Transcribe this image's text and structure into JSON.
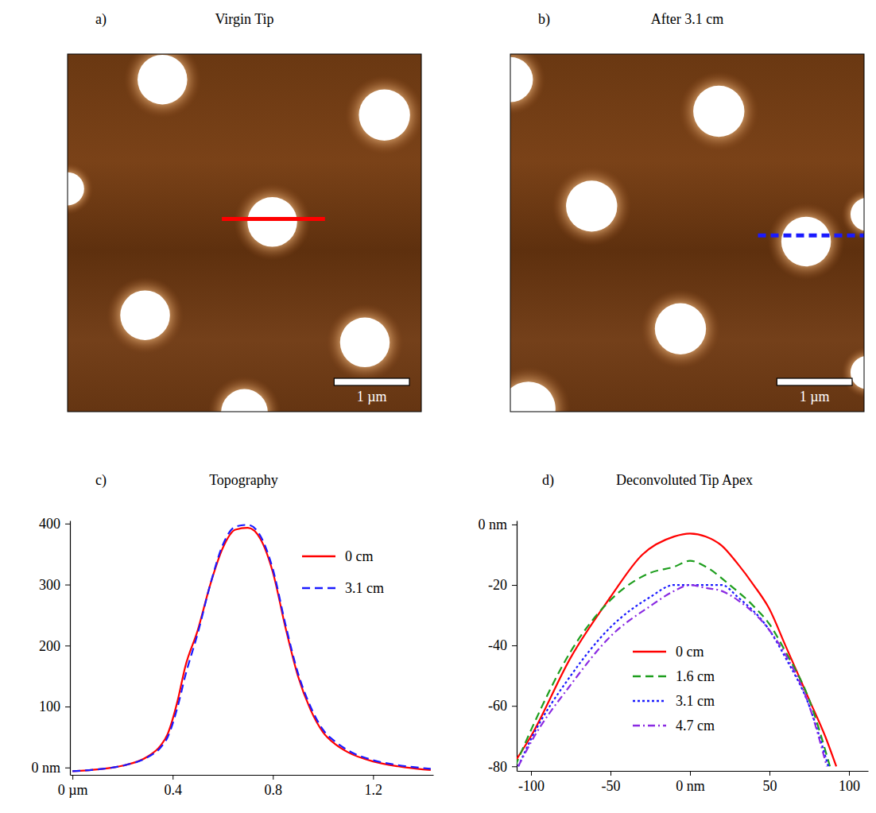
{
  "chart_data": [
    {
      "type": "image",
      "label": "a)",
      "title": "Virgin Tip",
      "xlim": [
        0,
        4.7
      ],
      "ylim": [
        0,
        4.75
      ],
      "tick_labels": false,
      "particles": [
        {
          "x": 1.26,
          "y": 0.34,
          "r": 0.33
        },
        {
          "x": 4.21,
          "y": 0.81,
          "r": 0.34
        },
        {
          "x": 0.0,
          "y": 1.79,
          "r": 0.22
        },
        {
          "x": 2.72,
          "y": 2.23,
          "r": 0.33
        },
        {
          "x": 1.03,
          "y": 3.47,
          "r": 0.33
        },
        {
          "x": 3.95,
          "y": 3.83,
          "r": 0.33
        },
        {
          "x": 2.35,
          "y": 4.76,
          "r": 0.31
        }
      ],
      "profile": {
        "x": [
          2.05,
          3.42
        ],
        "y": 2.19,
        "color": "#ff0000",
        "line_style": "solid"
      },
      "scale_bar": {
        "length": 1,
        "label": "1 µm"
      }
    },
    {
      "type": "image",
      "label": "b)",
      "title": "After 3.1 cm",
      "xlim": [
        0,
        4.7
      ],
      "ylim": [
        0,
        4.75
      ],
      "tick_labels": false,
      "particles": [
        {
          "x": 0.0,
          "y": 0.34,
          "r": 0.3
        },
        {
          "x": 2.77,
          "y": 0.76,
          "r": 0.34
        },
        {
          "x": 1.08,
          "y": 2.02,
          "r": 0.34
        },
        {
          "x": 3.93,
          "y": 2.49,
          "r": 0.33
        },
        {
          "x": 4.74,
          "y": 2.13,
          "r": 0.22
        },
        {
          "x": 2.26,
          "y": 3.65,
          "r": 0.34
        },
        {
          "x": 0.24,
          "y": 4.71,
          "r": 0.36
        },
        {
          "x": 4.74,
          "y": 4.23,
          "r": 0.22
        }
      ],
      "profile": {
        "x": [
          3.29,
          4.74
        ],
        "y": 2.41,
        "color": "#1a1aff",
        "line_style": "dashed"
      },
      "scale_bar": {
        "length": 1,
        "label": "1 µm"
      }
    },
    {
      "type": "line",
      "label": "c)",
      "title": "Topography",
      "x": [
        0,
        0.1,
        0.2,
        0.3,
        0.35,
        0.38,
        0.42,
        0.45,
        0.5,
        0.55,
        0.6,
        0.65,
        0.7,
        0.75,
        0.8,
        0.85,
        0.9,
        0.95,
        1.0,
        1.05,
        1.1,
        1.2,
        1.3,
        1.43
      ],
      "series": [
        {
          "name": "0 cm",
          "color": "#ff0000",
          "line_style": "solid",
          "values": [
            -6,
            -3,
            3,
            18,
            35,
            55,
            110,
            165,
            225,
            300,
            360,
            390,
            393,
            375,
            320,
            230,
            150,
            95,
            58,
            38,
            25,
            10,
            2,
            -4
          ]
        },
        {
          "name": "3.1 cm",
          "color": "#1a1aff",
          "line_style": "dashed",
          "values": [
            -6,
            -3,
            3,
            17,
            32,
            50,
            100,
            150,
            220,
            300,
            365,
            395,
            398,
            380,
            325,
            235,
            155,
            100,
            62,
            42,
            28,
            12,
            4,
            -2
          ]
        }
      ],
      "xlim": [
        -0.01,
        1.44
      ],
      "ylim": [
        -12,
        405
      ],
      "xticks": [
        {
          "value": 0,
          "label": "0 µm"
        },
        0.4,
        0.8,
        1.2
      ],
      "yticks": [
        {
          "value": 0,
          "label": "0 nm"
        },
        100,
        200,
        300,
        400
      ],
      "legend": "upper right"
    },
    {
      "type": "line",
      "label": "d)",
      "title": "Deconvoluted Tip Apex",
      "series": [
        {
          "name": "0 cm",
          "color": "#ff0000",
          "line_style": "solid",
          "x": [
            -112,
            -100,
            -75,
            -50,
            -30,
            -10,
            0,
            10,
            20,
            30,
            40,
            50,
            60,
            75,
            85,
            92
          ],
          "values": [
            -80,
            -70,
            -44,
            -24,
            -10,
            -4,
            -3,
            -4,
            -7,
            -13,
            -20,
            -28,
            -40,
            -58,
            -70,
            -80
          ]
        },
        {
          "name": "1.6 cm",
          "color": "#1e9e1e",
          "line_style": "dashed",
          "x": [
            -110,
            -100,
            -75,
            -50,
            -25,
            -10,
            0,
            10,
            25,
            40,
            50,
            60,
            75,
            88
          ],
          "values": [
            -80,
            -68,
            -42,
            -25,
            -16,
            -14,
            -12,
            -14,
            -20,
            -27,
            -33,
            -42,
            -58,
            -80
          ]
        },
        {
          "name": "3.1 cm",
          "color": "#1a1aff",
          "line_style": "dotted",
          "x": [
            -108,
            -100,
            -75,
            -50,
            -25,
            -10,
            0,
            10,
            20,
            30,
            50,
            60,
            75,
            87
          ],
          "values": [
            -80,
            -71,
            -50,
            -34,
            -24,
            -20,
            -20,
            -20,
            -20,
            -24,
            -35,
            -44,
            -60,
            -80
          ]
        },
        {
          "name": "4.7 cm",
          "color": "#8a2be2",
          "line_style": "dash-dot",
          "x": [
            -108,
            -100,
            -75,
            -50,
            -25,
            -10,
            0,
            10,
            20,
            30,
            50,
            60,
            75,
            86
          ],
          "values": [
            -80,
            -72,
            -53,
            -37,
            -27,
            -22,
            -20,
            -21,
            -22,
            -25,
            -35,
            -43,
            -60,
            -80
          ]
        }
      ],
      "xlim": [
        -109,
        112
      ],
      "ylim": [
        -81.5,
        1.3
      ],
      "xticks": [
        -100,
        -50,
        {
          "value": 0,
          "label": "0 nm"
        },
        50,
        100
      ],
      "yticks": [
        {
          "value": 0,
          "label": "0 nm"
        },
        -20,
        -40,
        -60,
        -80
      ],
      "legend": "lower center"
    }
  ]
}
